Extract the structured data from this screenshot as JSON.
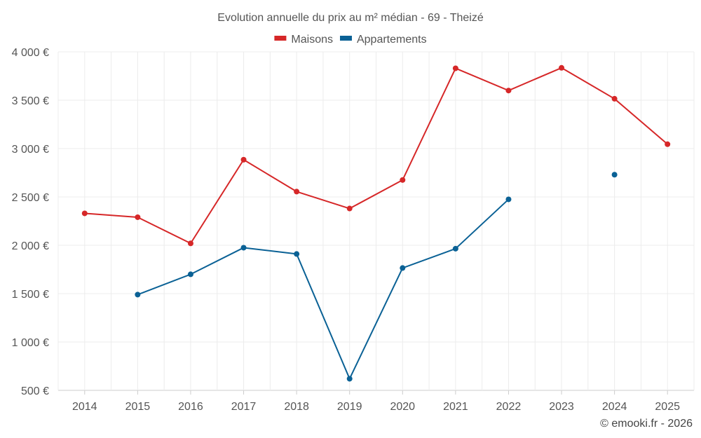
{
  "chart_data": {
    "type": "line",
    "title": "Evolution annuelle du prix au m² médian - 69 - Theizé",
    "categories": [
      "2014",
      "2015",
      "2016",
      "2017",
      "2018",
      "2019",
      "2020",
      "2021",
      "2022",
      "2023",
      "2024",
      "2025"
    ],
    "ylim": [
      500,
      4000
    ],
    "yticks": [
      500,
      1000,
      1500,
      2000,
      2500,
      3000,
      3500,
      4000
    ],
    "ytick_labels": [
      "500 €",
      "1 000 €",
      "1 500 €",
      "2 000 €",
      "2 500 €",
      "3 000 €",
      "3 500 €",
      "4 000 €"
    ],
    "grid": true,
    "legend_position": "top-center",
    "series": [
      {
        "name": "Maisons",
        "color": "#d62728",
        "values": [
          2330,
          2290,
          2020,
          2885,
          2555,
          2380,
          2675,
          3830,
          3600,
          3835,
          3515,
          3045
        ]
      },
      {
        "name": "Appartements",
        "color": "#0a6195",
        "values": [
          null,
          1490,
          1700,
          1975,
          1910,
          620,
          1765,
          1965,
          2475,
          null,
          2730,
          null
        ]
      }
    ]
  },
  "credit": "© emooki.fr - 2026"
}
